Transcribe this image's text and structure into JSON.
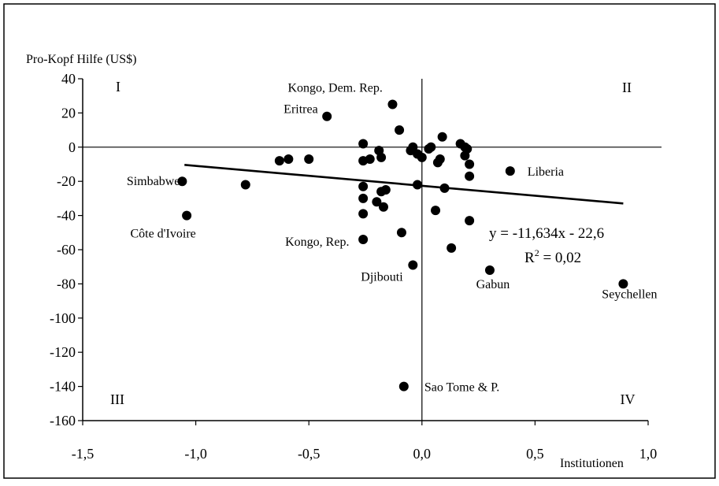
{
  "chart_data": {
    "type": "scatter",
    "ylabel": "Pro-Kopf Hilfe (US$)",
    "xlabel": "Institutionen",
    "xlim": [
      -1.5,
      1.0
    ],
    "ylim": [
      -160,
      40
    ],
    "xticks": [
      -1.5,
      -1.0,
      -0.5,
      0.0,
      0.5,
      1.0
    ],
    "xtick_labels": [
      "-1,5",
      "-1,0",
      "-0,5",
      "0,0",
      "0,5",
      "1,0"
    ],
    "yticks": [
      40,
      20,
      0,
      -20,
      -40,
      -60,
      -80,
      -100,
      -120,
      -140,
      -160
    ],
    "ytick_labels": [
      "40",
      "20",
      "0",
      "-20",
      "-40",
      "-60",
      "-80",
      "-100",
      "-120",
      "-140",
      "-160"
    ],
    "quadrants": [
      "I",
      "II",
      "III",
      "IV"
    ],
    "trendline": {
      "slope": -11.634,
      "intercept": -22.6,
      "x_range": [
        -1.05,
        0.89
      ],
      "equation": "y = -11,634x - 22,6",
      "r2_label": "R",
      "r2_sup": "2",
      "r2_value": " = 0,02"
    },
    "points": [
      {
        "x": 0.89,
        "y": -80,
        "label": "Seychellen"
      },
      {
        "x": 0.39,
        "y": -14,
        "label": "Liberia"
      },
      {
        "x": 0.3,
        "y": -72,
        "label": "Gabun"
      },
      {
        "x": -1.06,
        "y": -20,
        "label": "Simbabwe"
      },
      {
        "x": -1.04,
        "y": -40,
        "label": "Côte d'Ivoire"
      },
      {
        "x": -0.42,
        "y": 18,
        "label": "Eritrea"
      },
      {
        "x": -0.13,
        "y": 25,
        "label": "Kongo, Dem. Rep."
      },
      {
        "x": -0.26,
        "y": -54,
        "label": "Kongo, Rep."
      },
      {
        "x": -0.04,
        "y": -69,
        "label": "Djibouti"
      },
      {
        "x": -0.08,
        "y": -140,
        "label": "Sao Tome & P."
      },
      {
        "x": -0.78,
        "y": -22,
        "label": ""
      },
      {
        "x": -0.63,
        "y": -8,
        "label": ""
      },
      {
        "x": -0.59,
        "y": -7,
        "label": ""
      },
      {
        "x": -0.5,
        "y": -7,
        "label": ""
      },
      {
        "x": -0.26,
        "y": 2,
        "label": ""
      },
      {
        "x": -0.26,
        "y": -8,
        "label": ""
      },
      {
        "x": -0.23,
        "y": -7,
        "label": ""
      },
      {
        "x": -0.19,
        "y": -2,
        "label": ""
      },
      {
        "x": -0.18,
        "y": -6,
        "label": ""
      },
      {
        "x": -0.1,
        "y": 10,
        "label": ""
      },
      {
        "x": -0.05,
        "y": -2,
        "label": ""
      },
      {
        "x": -0.04,
        "y": 0,
        "label": ""
      },
      {
        "x": -0.02,
        "y": -4,
        "label": ""
      },
      {
        "x": 0.0,
        "y": -6,
        "label": ""
      },
      {
        "x": 0.03,
        "y": -1,
        "label": ""
      },
      {
        "x": 0.04,
        "y": 0,
        "label": ""
      },
      {
        "x": 0.07,
        "y": -9,
        "label": ""
      },
      {
        "x": 0.08,
        "y": -7,
        "label": ""
      },
      {
        "x": 0.09,
        "y": 6,
        "label": ""
      },
      {
        "x": 0.17,
        "y": 2,
        "label": ""
      },
      {
        "x": 0.19,
        "y": 0,
        "label": ""
      },
      {
        "x": 0.2,
        "y": -1,
        "label": ""
      },
      {
        "x": 0.19,
        "y": -5,
        "label": ""
      },
      {
        "x": 0.21,
        "y": -10,
        "label": ""
      },
      {
        "x": 0.21,
        "y": -17,
        "label": ""
      },
      {
        "x": -0.26,
        "y": -23,
        "label": ""
      },
      {
        "x": -0.18,
        "y": -26,
        "label": ""
      },
      {
        "x": -0.16,
        "y": -25,
        "label": ""
      },
      {
        "x": -0.02,
        "y": -22,
        "label": ""
      },
      {
        "x": 0.1,
        "y": -24,
        "label": ""
      },
      {
        "x": -0.26,
        "y": -30,
        "label": ""
      },
      {
        "x": -0.2,
        "y": -32,
        "label": ""
      },
      {
        "x": -0.17,
        "y": -35,
        "label": ""
      },
      {
        "x": -0.26,
        "y": -39,
        "label": ""
      },
      {
        "x": 0.06,
        "y": -37,
        "label": ""
      },
      {
        "x": 0.21,
        "y": -43,
        "label": ""
      },
      {
        "x": -0.09,
        "y": -50,
        "label": ""
      },
      {
        "x": 0.13,
        "y": -59,
        "label": ""
      }
    ]
  }
}
